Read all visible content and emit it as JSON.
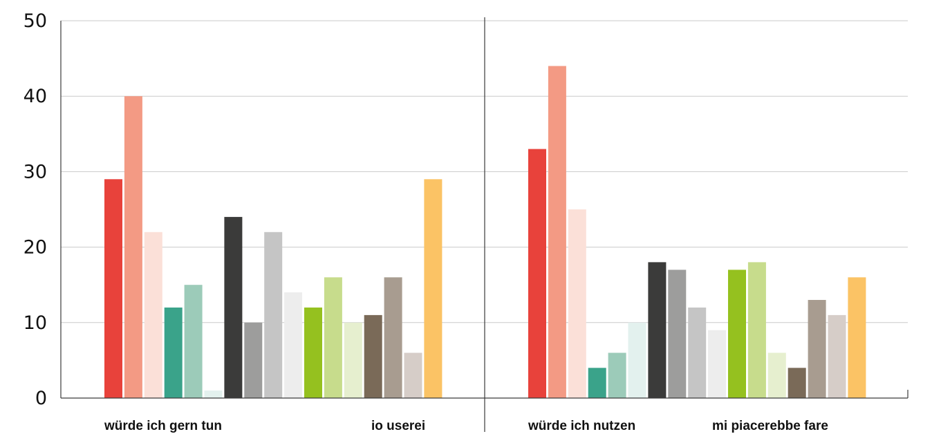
{
  "chart_data": {
    "type": "bar",
    "title": "",
    "xlabel": "",
    "ylabel": "",
    "ylim": [
      0,
      50
    ],
    "yticks": [
      0,
      10,
      20,
      30,
      40,
      50
    ],
    "grid": true,
    "legend": "none",
    "panels": [
      {
        "labels": [
          "würde ich gern tun",
          "io userei"
        ],
        "values": [
          29,
          40,
          22,
          12,
          15,
          1,
          24,
          10,
          22,
          14,
          12,
          16,
          10,
          11,
          16,
          6,
          29
        ]
      },
      {
        "labels": [
          "würde ich nutzen",
          "mi piacerebbe fare"
        ],
        "values": [
          33,
          44,
          25,
          4,
          6,
          10,
          18,
          17,
          12,
          9,
          17,
          18,
          6,
          4,
          13,
          11,
          16
        ]
      }
    ],
    "bar_colors": [
      "#e8423b",
      "#f39a84",
      "#fbe0d8",
      "#3aa38a",
      "#9ccbb9",
      "#e3f1ee",
      "#3b3b3a",
      "#9d9d9c",
      "#c5c5c5",
      "#ededed",
      "#95c11f",
      "#c7dc8c",
      "#e6efcf",
      "#7a6a58",
      "#a89c90",
      "#d6cdc8",
      "#fbc365"
    ]
  }
}
